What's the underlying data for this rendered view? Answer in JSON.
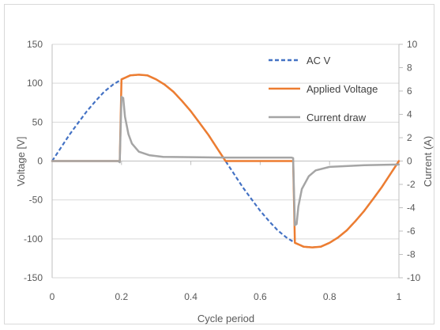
{
  "chart_data": {
    "type": "line",
    "title": "",
    "xlabel": "Cycle period",
    "ylabel": "Voltage [V]",
    "y2label": "Current (A)",
    "xlim": [
      0,
      1
    ],
    "ylim": [
      -150,
      150
    ],
    "y2lim": [
      -10,
      10
    ],
    "x_ticks": [
      "0",
      "0.2",
      "0.4",
      "0.6",
      "0.8",
      "1"
    ],
    "y_ticks": [
      "150",
      "100",
      "50",
      "0",
      "-50",
      "-100",
      "-150"
    ],
    "y2_ticks": [
      "10",
      "8",
      "6",
      "4",
      "2",
      "0",
      "-2",
      "-4",
      "-6",
      "-8",
      "-10"
    ],
    "grid": "horizontal",
    "legend_position": "top-right",
    "series": [
      {
        "name": "AC V",
        "axis": "left",
        "style": "dashed",
        "color": "#4472c4",
        "points": [
          [
            0,
            0
          ],
          [
            0.025,
            17
          ],
          [
            0.05,
            34
          ],
          [
            0.075,
            49
          ],
          [
            0.1,
            64
          ],
          [
            0.125,
            77
          ],
          [
            0.15,
            89
          ],
          [
            0.175,
            98
          ],
          [
            0.2,
            105
          ],
          [
            0.225,
            110
          ],
          [
            0.25,
            111
          ],
          [
            0.275,
            110
          ],
          [
            0.3,
            105
          ],
          [
            0.325,
            98
          ],
          [
            0.35,
            89
          ],
          [
            0.375,
            77
          ],
          [
            0.4,
            64
          ],
          [
            0.425,
            49
          ],
          [
            0.45,
            34
          ],
          [
            0.475,
            17
          ],
          [
            0.5,
            0
          ],
          [
            0.525,
            -17
          ],
          [
            0.55,
            -34
          ],
          [
            0.575,
            -49
          ],
          [
            0.6,
            -64
          ],
          [
            0.625,
            -77
          ],
          [
            0.65,
            -89
          ],
          [
            0.675,
            -98
          ],
          [
            0.7,
            -105
          ],
          [
            0.725,
            -110
          ],
          [
            0.75,
            -111
          ],
          [
            0.775,
            -110
          ],
          [
            0.8,
            -105
          ],
          [
            0.825,
            -98
          ],
          [
            0.85,
            -89
          ],
          [
            0.875,
            -77
          ],
          [
            0.9,
            -64
          ],
          [
            0.925,
            -49
          ],
          [
            0.95,
            -34
          ],
          [
            0.975,
            -17
          ],
          [
            1,
            0
          ]
        ]
      },
      {
        "name": "Applied Voltage",
        "axis": "left",
        "style": "solid",
        "color": "#ed7d31",
        "points": [
          [
            0,
            0
          ],
          [
            0.195,
            0
          ],
          [
            0.2,
            105
          ],
          [
            0.225,
            110
          ],
          [
            0.25,
            111
          ],
          [
            0.275,
            110
          ],
          [
            0.3,
            105
          ],
          [
            0.325,
            98
          ],
          [
            0.35,
            89
          ],
          [
            0.375,
            77
          ],
          [
            0.4,
            64
          ],
          [
            0.425,
            49
          ],
          [
            0.45,
            34
          ],
          [
            0.475,
            17
          ],
          [
            0.5,
            0
          ],
          [
            0.695,
            0
          ],
          [
            0.7,
            -105
          ],
          [
            0.725,
            -110
          ],
          [
            0.75,
            -111
          ],
          [
            0.775,
            -110
          ],
          [
            0.8,
            -105
          ],
          [
            0.825,
            -98
          ],
          [
            0.85,
            -89
          ],
          [
            0.875,
            -77
          ],
          [
            0.9,
            -64
          ],
          [
            0.925,
            -49
          ],
          [
            0.95,
            -34
          ],
          [
            0.975,
            -17
          ],
          [
            1,
            0
          ]
        ]
      },
      {
        "name": "Current draw",
        "axis": "right",
        "style": "solid",
        "color": "#a5a5a5",
        "points": [
          [
            0,
            0
          ],
          [
            0.19,
            0
          ],
          [
            0.195,
            -0.1
          ],
          [
            0.2,
            5.5
          ],
          [
            0.205,
            5.4
          ],
          [
            0.21,
            3.8
          ],
          [
            0.22,
            2.3
          ],
          [
            0.23,
            1.5
          ],
          [
            0.25,
            0.8
          ],
          [
            0.28,
            0.5
          ],
          [
            0.32,
            0.35
          ],
          [
            0.5,
            0.3
          ],
          [
            0.69,
            0.3
          ],
          [
            0.695,
            0.25
          ],
          [
            0.7,
            -5.5
          ],
          [
            0.705,
            -5.4
          ],
          [
            0.71,
            -3.9
          ],
          [
            0.72,
            -2.4
          ],
          [
            0.74,
            -1.3
          ],
          [
            0.76,
            -0.8
          ],
          [
            0.8,
            -0.5
          ],
          [
            0.9,
            -0.35
          ],
          [
            1,
            -0.3
          ]
        ]
      }
    ]
  }
}
